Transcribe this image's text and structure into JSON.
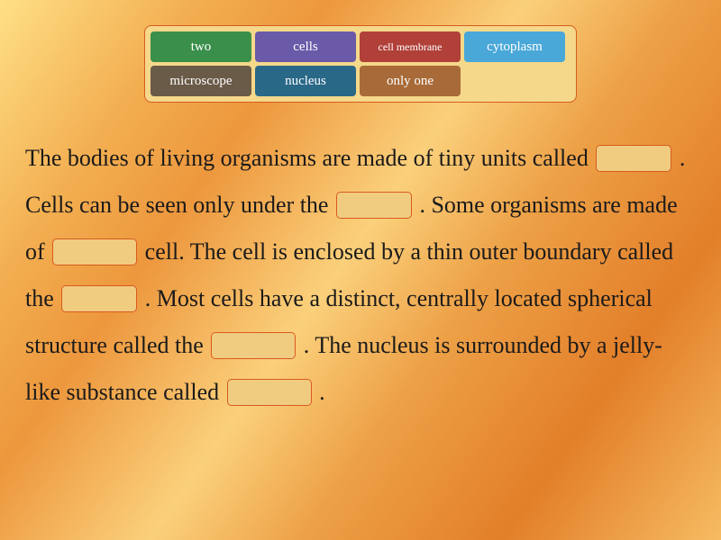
{
  "word_bank": {
    "container_bg": "#f5d88a",
    "container_border": "#d85a20",
    "tiles": [
      {
        "label": "two",
        "bg": "#3a8f4a",
        "small": false
      },
      {
        "label": "cells",
        "bg": "#6a5aa8",
        "small": false
      },
      {
        "label": "cell membrane",
        "bg": "#b04038",
        "small": true
      },
      {
        "label": "cytoplasm",
        "bg": "#4aa8d8",
        "small": false
      },
      {
        "label": "microscope",
        "bg": "#6a5a48",
        "small": false
      },
      {
        "label": "nucleus",
        "bg": "#2a6888",
        "small": false
      },
      {
        "label": "only one",
        "bg": "#a86a38",
        "small": false
      }
    ]
  },
  "passage": {
    "text_color": "#1a1a1a",
    "fontsize": 26,
    "segments": [
      "The bodies of living organisms are made of tiny units called ",
      ". Cells can be seen only under the ",
      ". Some organisms are made of ",
      " cell. The cell is enclosed by a thin outer boundary called the ",
      ". Most cells have a distinct, centrally located spherical structure called the ",
      ". The nucleus is surrounded by a jelly-like substance called ",
      "."
    ],
    "blank_bg": "#f0cc80",
    "blank_border": "#d85a20"
  },
  "background": {
    "gradient_colors": [
      "#f5c842",
      "#f0a830",
      "#e88a20",
      "#f5b840",
      "#e89530",
      "#d87818"
    ]
  }
}
